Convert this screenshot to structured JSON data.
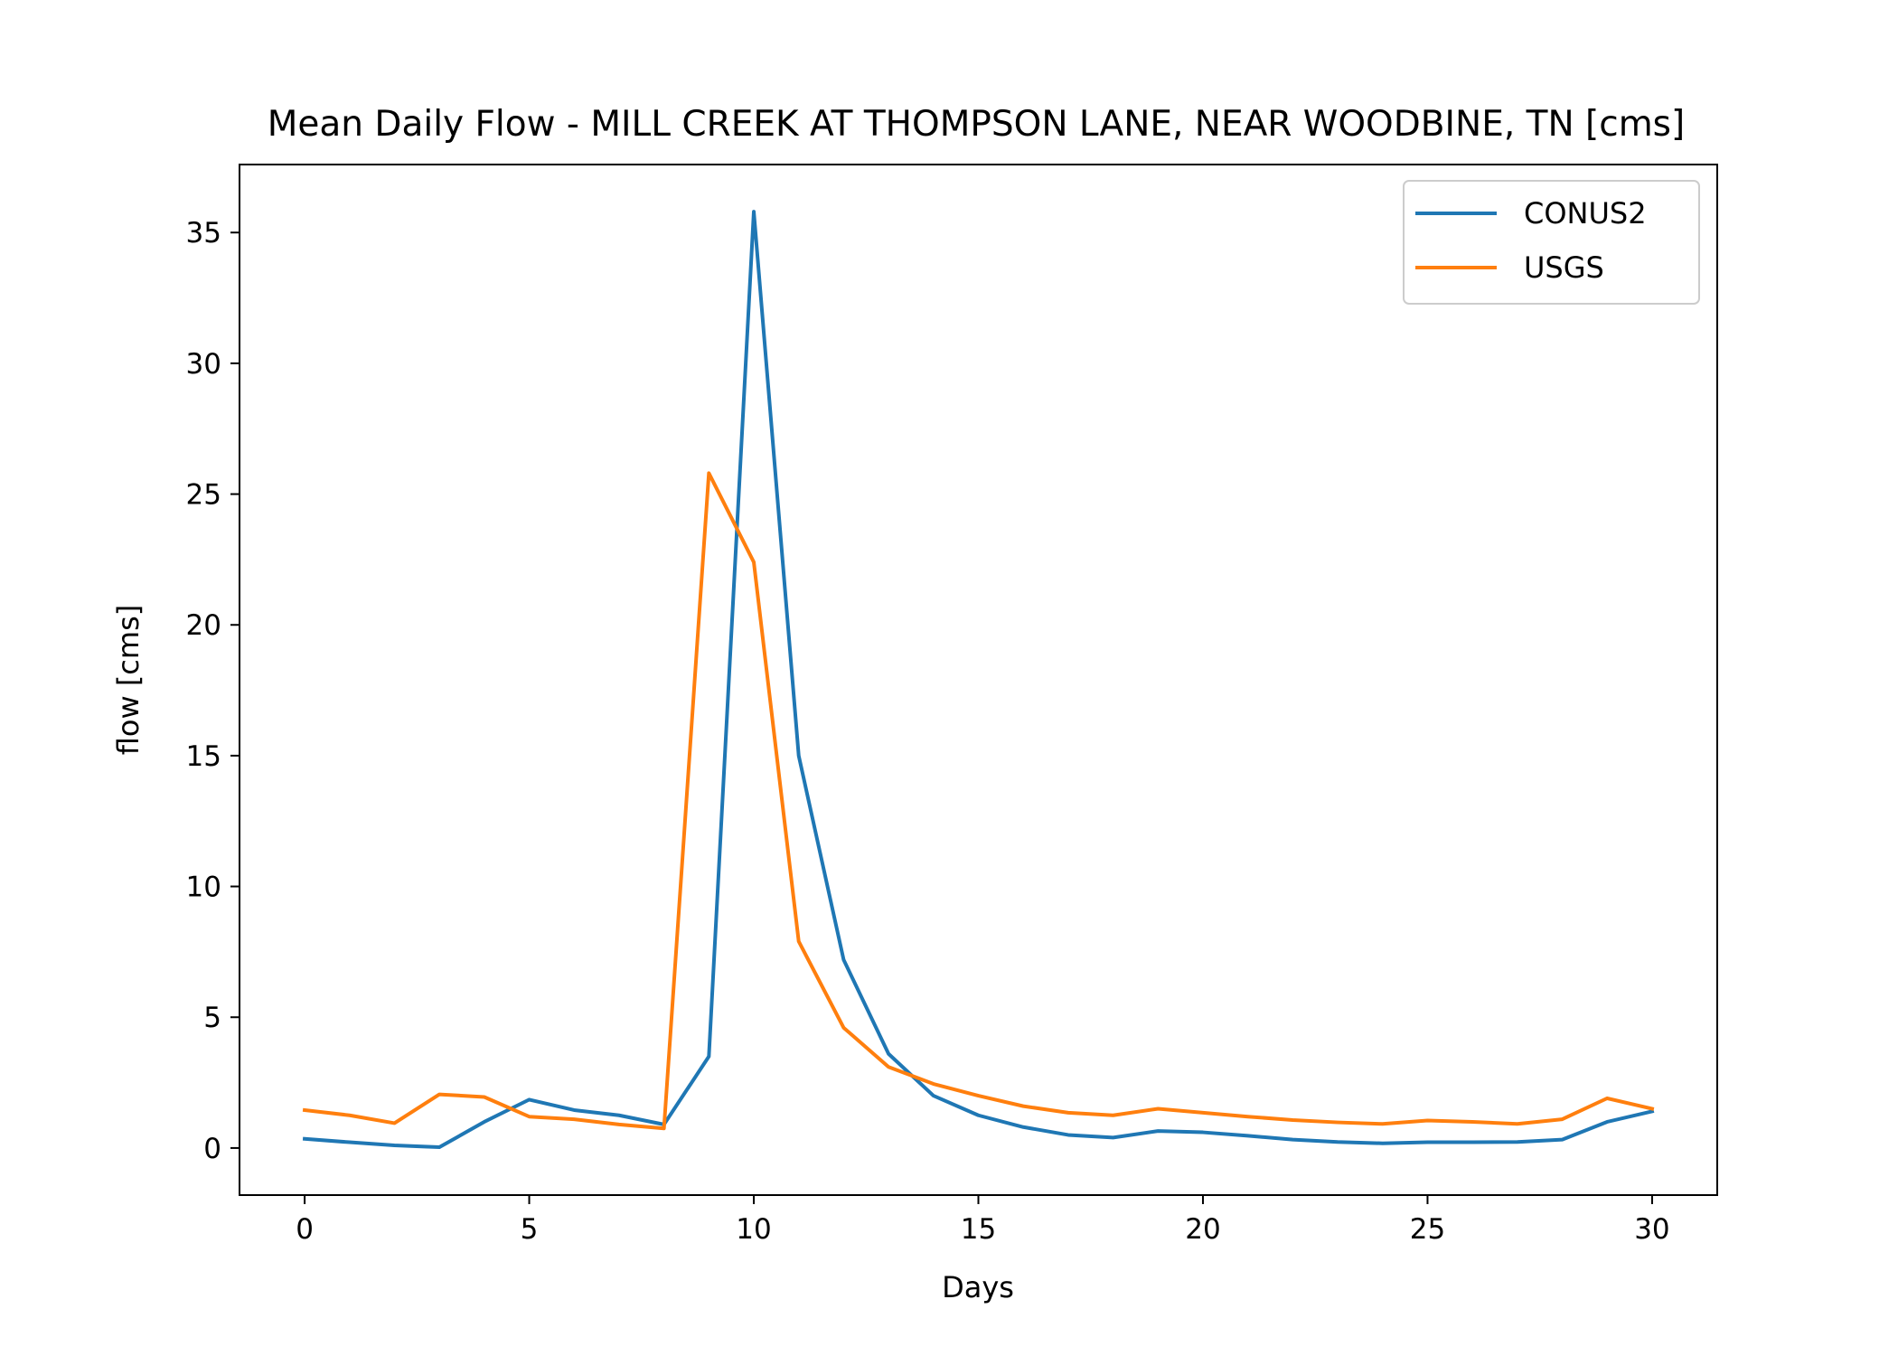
{
  "chart_data": {
    "type": "line",
    "title": "Mean Daily Flow - MILL CREEK AT THOMPSON LANE, NEAR WOODBINE, TN [cms]",
    "xlabel": "Days",
    "ylabel": "flow [cms]",
    "xlim": [
      -1.45,
      31.45
    ],
    "ylim": [
      -1.8,
      37.6
    ],
    "xticks": [
      0,
      5,
      10,
      15,
      20,
      25,
      30
    ],
    "yticks": [
      0,
      5,
      10,
      15,
      20,
      25,
      30,
      35
    ],
    "grid": false,
    "legend_position": "top-right",
    "x": [
      0,
      1,
      2,
      3,
      4,
      5,
      6,
      7,
      8,
      9,
      10,
      11,
      12,
      13,
      14,
      15,
      16,
      17,
      18,
      19,
      20,
      21,
      22,
      23,
      24,
      25,
      26,
      27,
      28,
      29,
      30
    ],
    "series": [
      {
        "name": "CONUS2",
        "color": "#1f77b4",
        "values": [
          0.35,
          0.22,
          0.1,
          0.03,
          1.0,
          1.85,
          1.45,
          1.25,
          0.9,
          3.5,
          35.8,
          15.0,
          7.2,
          3.6,
          2.0,
          1.25,
          0.8,
          0.5,
          0.4,
          0.65,
          0.6,
          0.47,
          0.32,
          0.23,
          0.18,
          0.22,
          0.22,
          0.23,
          0.32,
          1.0,
          1.4
        ]
      },
      {
        "name": "USGS",
        "color": "#ff7f0e",
        "values": [
          1.45,
          1.25,
          0.95,
          2.05,
          1.95,
          1.2,
          1.1,
          0.9,
          0.75,
          25.8,
          22.4,
          7.9,
          4.6,
          3.1,
          2.45,
          2.0,
          1.6,
          1.35,
          1.25,
          1.5,
          1.35,
          1.2,
          1.07,
          0.98,
          0.92,
          1.05,
          1.0,
          0.92,
          1.1,
          1.9,
          1.5
        ]
      }
    ]
  }
}
